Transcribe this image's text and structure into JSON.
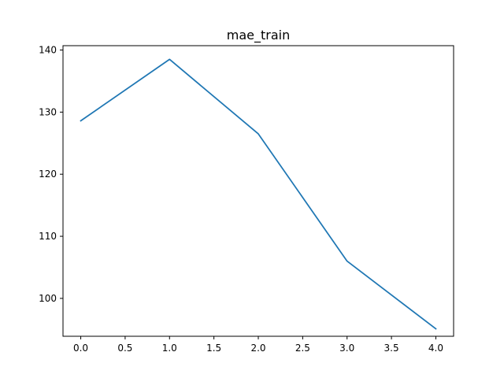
{
  "chart_data": {
    "type": "line",
    "title": "mae_train",
    "xlabel": "",
    "ylabel": "",
    "x": [
      0,
      1,
      2,
      3,
      4
    ],
    "series": [
      {
        "values": [
          128.6,
          138.5,
          126.5,
          106.0,
          95.1
        ],
        "color": "#1f77b4"
      }
    ],
    "xlim": [
      -0.2,
      4.2
    ],
    "ylim": [
      93.9,
      140.7
    ],
    "xticks": [
      0.0,
      0.5,
      1.0,
      1.5,
      2.0,
      2.5,
      3.0,
      3.5,
      4.0
    ],
    "xtick_labels": [
      "0.0",
      "0.5",
      "1.0",
      "1.5",
      "2.0",
      "2.5",
      "3.0",
      "3.5",
      "4.0"
    ],
    "yticks": [
      100,
      110,
      120,
      130,
      140
    ],
    "ytick_labels": [
      "100",
      "110",
      "120",
      "130",
      "140"
    ],
    "grid": false,
    "legend": "none"
  }
}
